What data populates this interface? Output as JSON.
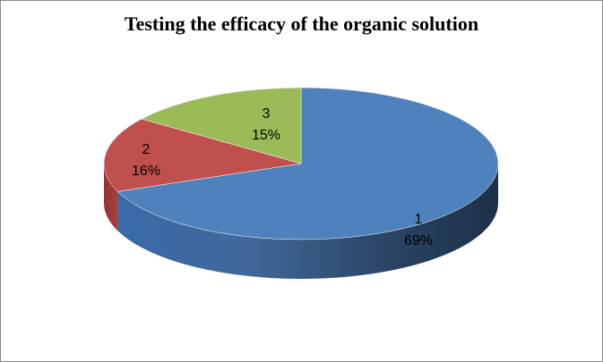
{
  "chart_data": {
    "type": "pie",
    "title": "Testing the efficacy of the organic solution",
    "slices": [
      {
        "label": "1",
        "value": 69,
        "value_label": "69%",
        "color": "#4f81bd"
      },
      {
        "label": "2",
        "value": 16,
        "value_label": "16%",
        "color": "#c0504d"
      },
      {
        "label": "3",
        "value": 15,
        "value_label": "15%",
        "color": "#9bbb59"
      }
    ],
    "style": "3d"
  }
}
